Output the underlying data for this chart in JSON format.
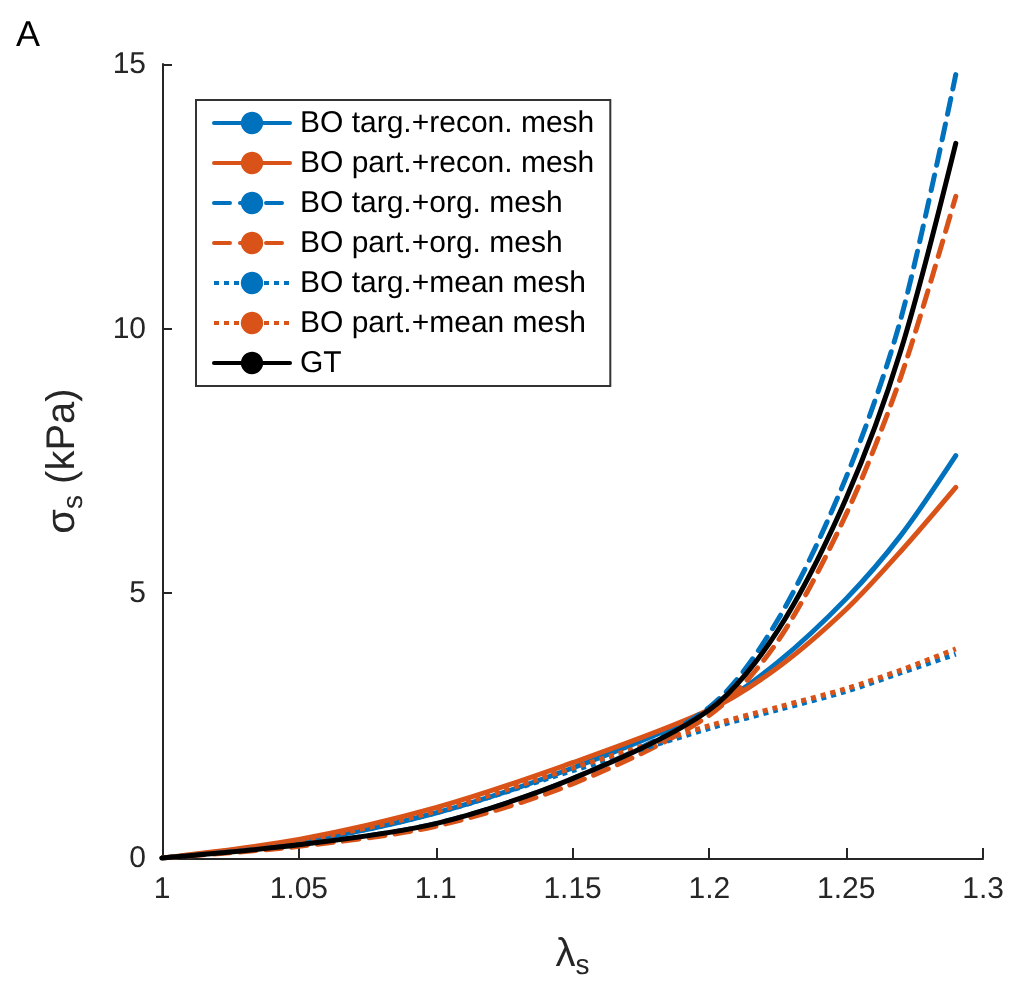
{
  "chart_data": {
    "type": "line",
    "xlabel": "λ$_{s}$",
    "ylabel": "σ$_{s}$ (kPa)",
    "annotations": [
      "A"
    ],
    "x": [
      1,
      1.05,
      1.1,
      1.15,
      1.2,
      1.225,
      1.25,
      1.27,
      1.29
    ],
    "xlim": [
      1,
      1.3
    ],
    "xticks": [
      1,
      1.05,
      1.1,
      1.15,
      1.2,
      1.25,
      1.3
    ],
    "ylim": [
      0,
      15
    ],
    "yticks": [
      0,
      5,
      10,
      15
    ],
    "grid": false,
    "legend": "top left",
    "marker": "none",
    "series": [
      {
        "name": "BO targ.+recon. mesh",
        "color": "#0072bd",
        "line_style": "solid",
        "values": [
          0,
          0.3,
          0.85,
          1.7,
          2.8,
          3.7,
          4.9,
          6.1,
          7.6
        ]
      },
      {
        "name": "BO part.+recon. mesh",
        "color": "#d95319",
        "line_style": "solid",
        "values": [
          0,
          0.35,
          0.95,
          1.8,
          2.8,
          3.6,
          4.7,
          5.8,
          7.0
        ]
      },
      {
        "name": "BO targ.+org. mesh",
        "color": "#0072bd",
        "line_style": "dashed",
        "values": [
          0,
          0.25,
          0.65,
          1.5,
          2.85,
          4.5,
          7.2,
          10.2,
          14.8
        ]
      },
      {
        "name": "BO part.+org. mesh",
        "color": "#d95319",
        "line_style": "dashed",
        "values": [
          0,
          0.22,
          0.6,
          1.4,
          2.7,
          4.1,
          6.5,
          9.1,
          12.5
        ]
      },
      {
        "name": "BO targ.+mean mesh",
        "color": "#0072bd",
        "line_style": "dotted",
        "values": [
          0,
          0.3,
          0.85,
          1.65,
          2.45,
          2.8,
          3.15,
          3.5,
          3.85
        ]
      },
      {
        "name": "BO part.+mean mesh",
        "color": "#d95319",
        "line_style": "dotted",
        "values": [
          0,
          0.32,
          0.88,
          1.7,
          2.5,
          2.85,
          3.2,
          3.55,
          3.95
        ]
      },
      {
        "name": "GT",
        "color": "#000000",
        "line_style": "solid",
        "values": [
          0,
          0.25,
          0.65,
          1.5,
          2.8,
          4.3,
          6.8,
          9.6,
          13.5
        ]
      }
    ]
  }
}
